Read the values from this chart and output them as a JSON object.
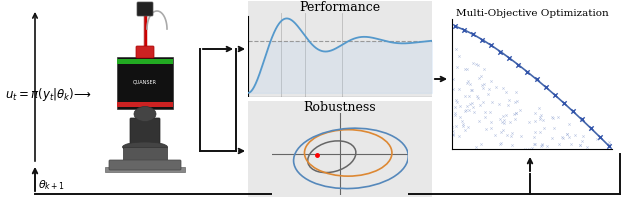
{
  "fig_width": 6.4,
  "fig_height": 2.03,
  "dpi": 100,
  "bg_color": "#ffffff",
  "panel_bg": "#e8e8e8",
  "perf_title": "Performance",
  "robust_title": "Robustness",
  "moo_title": "Multi-Objective Optimization",
  "step_curve_color": "#5599cc",
  "step_fill_color": "#aaccee",
  "step_dashed_color": "#999999",
  "ellipse_dark_color": "#666666",
  "ellipse_orange_color": "#dd8833",
  "ellipse_blue_color": "#5588bb",
  "scatter_color": "#99aaccaa",
  "pareto_line_color": "#4466aa",
  "pareto_marker_color": "#3355aa",
  "arrow_color": "#111111",
  "robot_body_color": "#111111",
  "robot_green": "#22aa22",
  "robot_red": "#cc2222",
  "robot_pole_color": "#bb3333",
  "robot_gray": "#888888",
  "robot_base_color": "#555555"
}
